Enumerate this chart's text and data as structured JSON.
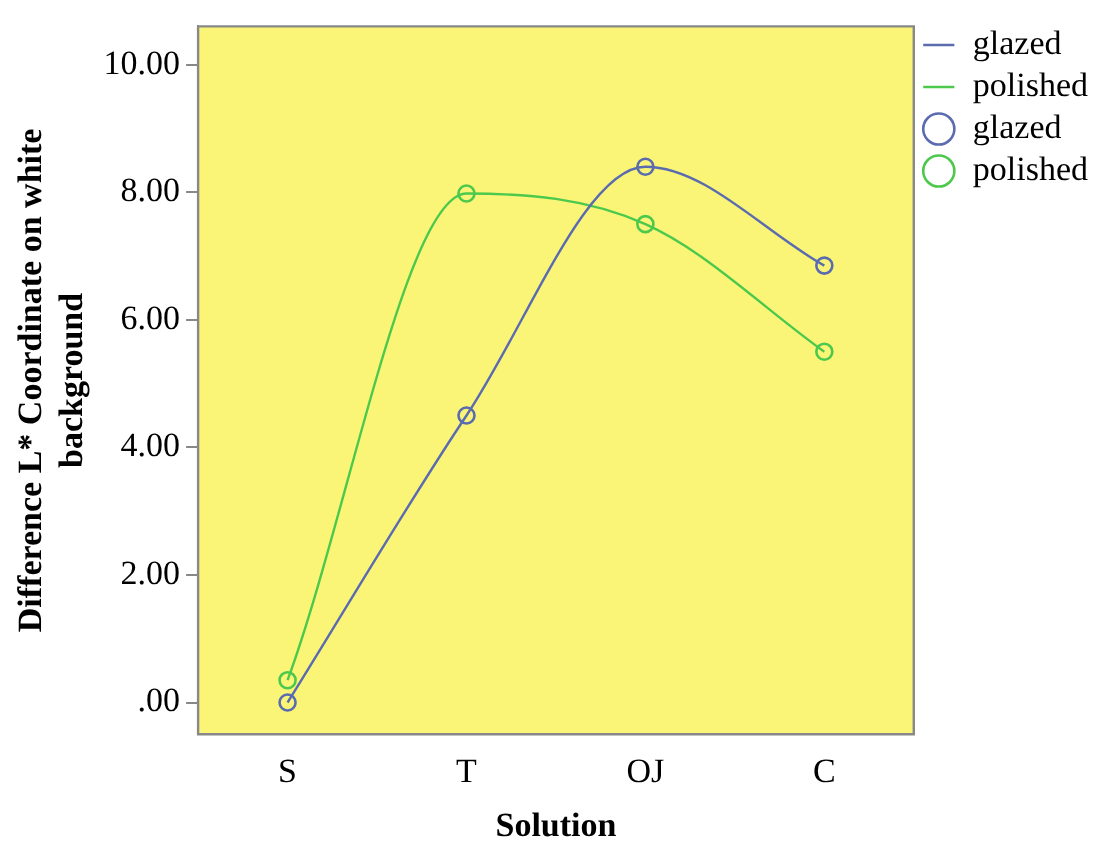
{
  "chart_data": {
    "type": "line",
    "xlabel": "Solution",
    "ylabel": "Difference L* Coordinate on white background",
    "categories": [
      "S",
      "T",
      "OJ",
      "C"
    ],
    "series": [
      {
        "name": "glazed",
        "type": "line",
        "marker": "none",
        "color": "#5a6bb0",
        "values": [
          0.0,
          4.5,
          8.4,
          6.85
        ]
      },
      {
        "name": "polished",
        "type": "line",
        "marker": "none",
        "color": "#4cc94c",
        "values": [
          0.35,
          7.98,
          7.5,
          5.5
        ]
      },
      {
        "name": "glazed",
        "type": "scatter",
        "marker": "circle",
        "color": "#5a6bb0",
        "x": [
          "S",
          "T",
          "OJ",
          "C"
        ],
        "values": [
          0.0,
          4.5,
          8.4,
          6.85
        ]
      },
      {
        "name": "polished",
        "type": "scatter",
        "marker": "circle",
        "color": "#4cc94c",
        "x": [
          "S",
          "T",
          "OJ",
          "C"
        ],
        "values": [
          0.35,
          7.98,
          7.5,
          5.5
        ]
      }
    ],
    "ylim": [
      -0.5,
      10.6
    ],
    "yticks": [
      {
        "value": 0,
        "label": ".00"
      },
      {
        "value": 2,
        "label": "2.00"
      },
      {
        "value": 4,
        "label": "4.00"
      },
      {
        "value": 6,
        "label": "6.00"
      },
      {
        "value": 8,
        "label": "8.00"
      },
      {
        "value": 10,
        "label": "10.00"
      }
    ],
    "grid": false,
    "legend": "top right"
  }
}
